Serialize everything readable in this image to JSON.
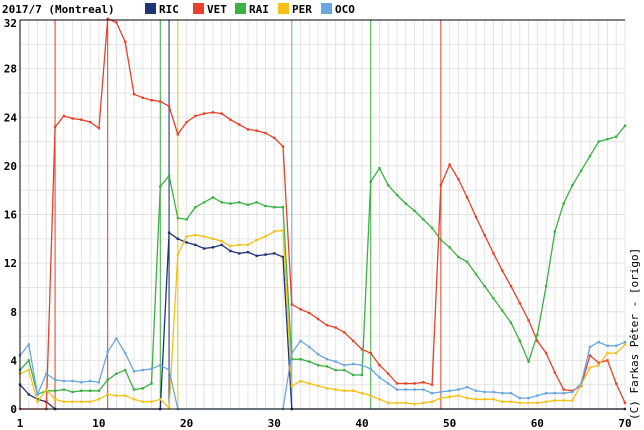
{
  "chart_data": {
    "type": "line",
    "title": "2017/7 (Montreal)",
    "credit": "(C) Farkas Péter - [origo]",
    "xlim": [
      1,
      70
    ],
    "ylim": [
      0,
      32
    ],
    "x_ticks": [
      1,
      10,
      20,
      30,
      40,
      50,
      60,
      70
    ],
    "y_ticks": [
      0,
      4,
      8,
      12,
      16,
      20,
      24,
      28,
      32
    ],
    "grid": true,
    "legend_position": "top",
    "series": [
      {
        "name": "RIC",
        "color": "#1f3477",
        "points": [
          [
            1,
            2.0
          ],
          [
            2,
            1.2
          ],
          [
            3,
            0.8
          ],
          [
            4,
            0.6
          ],
          [
            5,
            0
          ],
          [
            17,
            0
          ],
          [
            18,
            14.5
          ],
          [
            19,
            14.0
          ],
          [
            20,
            13.7
          ],
          [
            21,
            13.5
          ],
          [
            22,
            13.2
          ],
          [
            23,
            13.3
          ],
          [
            24,
            13.5
          ],
          [
            25,
            13.0
          ],
          [
            26,
            12.8
          ],
          [
            27,
            12.9
          ],
          [
            28,
            12.6
          ],
          [
            29,
            12.7
          ],
          [
            30,
            12.8
          ],
          [
            31,
            12.5
          ],
          [
            32,
            0
          ],
          [
            70,
            0
          ]
        ]
      },
      {
        "name": "VET",
        "color": "#e8402a",
        "points": [
          [
            1,
            0
          ],
          [
            4,
            0
          ],
          [
            5,
            23.2
          ],
          [
            6,
            24.1
          ],
          [
            7,
            23.9
          ],
          [
            8,
            23.8
          ],
          [
            9,
            23.6
          ],
          [
            10,
            23.1
          ],
          [
            11,
            32.1
          ],
          [
            12,
            31.8
          ],
          [
            13,
            30.2
          ],
          [
            14,
            25.9
          ],
          [
            15,
            25.6
          ],
          [
            16,
            25.4
          ],
          [
            17,
            25.3
          ],
          [
            18,
            24.9
          ],
          [
            19,
            22.6
          ],
          [
            20,
            23.6
          ],
          [
            21,
            24.1
          ],
          [
            22,
            24.3
          ],
          [
            23,
            24.4
          ],
          [
            24,
            24.3
          ],
          [
            25,
            23.8
          ],
          [
            26,
            23.4
          ],
          [
            27,
            23.0
          ],
          [
            28,
            22.9
          ],
          [
            29,
            22.7
          ],
          [
            30,
            22.3
          ],
          [
            31,
            21.6
          ],
          [
            32,
            8.6
          ],
          [
            33,
            8.2
          ],
          [
            34,
            7.9
          ],
          [
            35,
            7.4
          ],
          [
            36,
            6.9
          ],
          [
            37,
            6.7
          ],
          [
            38,
            6.3
          ],
          [
            39,
            5.6
          ],
          [
            40,
            4.9
          ],
          [
            41,
            4.6
          ],
          [
            42,
            3.6
          ],
          [
            43,
            2.9
          ],
          [
            44,
            2.1
          ],
          [
            45,
            2.1
          ],
          [
            46,
            2.1
          ],
          [
            47,
            2.2
          ],
          [
            48,
            2.0
          ],
          [
            49,
            18.4
          ],
          [
            50,
            20.1
          ],
          [
            51,
            18.9
          ],
          [
            52,
            17.4
          ],
          [
            53,
            15.8
          ],
          [
            54,
            14.3
          ],
          [
            55,
            12.8
          ],
          [
            56,
            11.4
          ],
          [
            57,
            10.1
          ],
          [
            58,
            8.7
          ],
          [
            59,
            7.3
          ],
          [
            60,
            5.6
          ],
          [
            61,
            4.6
          ],
          [
            62,
            3.0
          ],
          [
            63,
            1.6
          ],
          [
            64,
            1.5
          ],
          [
            65,
            1.9
          ],
          [
            66,
            4.4
          ],
          [
            67,
            3.8
          ],
          [
            68,
            4.0
          ],
          [
            69,
            2.1
          ],
          [
            70,
            0.5
          ]
        ]
      },
      {
        "name": "RAI",
        "color": "#3cb043",
        "points": [
          [
            1,
            3.2
          ],
          [
            2,
            4.0
          ],
          [
            3,
            1.2
          ],
          [
            4,
            1.5
          ],
          [
            5,
            1.5
          ],
          [
            6,
            1.6
          ],
          [
            7,
            1.4
          ],
          [
            8,
            1.5
          ],
          [
            9,
            1.5
          ],
          [
            10,
            1.5
          ],
          [
            11,
            2.4
          ],
          [
            12,
            2.9
          ],
          [
            13,
            3.2
          ],
          [
            14,
            1.6
          ],
          [
            15,
            1.7
          ],
          [
            16,
            2.1
          ],
          [
            17,
            18.3
          ],
          [
            18,
            19.2
          ],
          [
            19,
            15.7
          ],
          [
            20,
            15.6
          ],
          [
            21,
            16.6
          ],
          [
            22,
            17.0
          ],
          [
            23,
            17.4
          ],
          [
            24,
            17.0
          ],
          [
            25,
            16.9
          ],
          [
            26,
            17.0
          ],
          [
            27,
            16.8
          ],
          [
            28,
            17.0
          ],
          [
            29,
            16.7
          ],
          [
            30,
            16.6
          ],
          [
            31,
            16.6
          ],
          [
            32,
            4.1
          ],
          [
            33,
            4.1
          ],
          [
            34,
            3.9
          ],
          [
            35,
            3.6
          ],
          [
            36,
            3.5
          ],
          [
            37,
            3.2
          ],
          [
            38,
            3.2
          ],
          [
            39,
            2.8
          ],
          [
            40,
            2.8
          ],
          [
            41,
            18.7
          ],
          [
            42,
            19.8
          ],
          [
            43,
            18.4
          ],
          [
            44,
            17.6
          ],
          [
            45,
            16.9
          ],
          [
            46,
            16.3
          ],
          [
            47,
            15.6
          ],
          [
            48,
            14.9
          ],
          [
            49,
            13.9
          ],
          [
            50,
            13.3
          ],
          [
            51,
            12.5
          ],
          [
            52,
            12.1
          ],
          [
            53,
            11.1
          ],
          [
            54,
            10.1
          ],
          [
            55,
            9.1
          ],
          [
            56,
            8.1
          ],
          [
            57,
            7.1
          ],
          [
            58,
            5.6
          ],
          [
            59,
            3.9
          ],
          [
            60,
            6.1
          ],
          [
            61,
            10.1
          ],
          [
            62,
            14.6
          ],
          [
            63,
            16.9
          ],
          [
            64,
            18.4
          ],
          [
            65,
            19.6
          ],
          [
            66,
            20.8
          ],
          [
            67,
            22.0
          ],
          [
            68,
            22.2
          ],
          [
            69,
            22.4
          ],
          [
            70,
            23.3
          ]
        ]
      },
      {
        "name": "PER",
        "color": "#f5c018",
        "points": [
          [
            1,
            2.9
          ],
          [
            2,
            3.2
          ],
          [
            3,
            0.6
          ],
          [
            4,
            1.6
          ],
          [
            5,
            0.8
          ],
          [
            6,
            0.6
          ],
          [
            7,
            0.6
          ],
          [
            8,
            0.6
          ],
          [
            9,
            0.6
          ],
          [
            10,
            0.8
          ],
          [
            11,
            1.2
          ],
          [
            12,
            1.1
          ],
          [
            13,
            1.1
          ],
          [
            14,
            0.8
          ],
          [
            15,
            0.6
          ],
          [
            16,
            0.6
          ],
          [
            17,
            0.8
          ],
          [
            18,
            0.1
          ],
          [
            19,
            12.7
          ],
          [
            20,
            14.2
          ],
          [
            21,
            14.3
          ],
          [
            22,
            14.2
          ],
          [
            23,
            14.0
          ],
          [
            24,
            13.8
          ],
          [
            25,
            13.4
          ],
          [
            26,
            13.5
          ],
          [
            27,
            13.5
          ],
          [
            28,
            13.9
          ],
          [
            29,
            14.2
          ],
          [
            30,
            14.6
          ],
          [
            31,
            14.7
          ],
          [
            32,
            1.9
          ],
          [
            33,
            2.3
          ],
          [
            34,
            2.1
          ],
          [
            35,
            1.9
          ],
          [
            36,
            1.7
          ],
          [
            37,
            1.6
          ],
          [
            38,
            1.5
          ],
          [
            39,
            1.5
          ],
          [
            40,
            1.3
          ],
          [
            41,
            1.1
          ],
          [
            42,
            0.8
          ],
          [
            43,
            0.5
          ],
          [
            44,
            0.5
          ],
          [
            45,
            0.5
          ],
          [
            46,
            0.4
          ],
          [
            47,
            0.5
          ],
          [
            48,
            0.6
          ],
          [
            49,
            0.9
          ],
          [
            50,
            1.0
          ],
          [
            51,
            1.1
          ],
          [
            52,
            0.9
          ],
          [
            53,
            0.8
          ],
          [
            54,
            0.8
          ],
          [
            55,
            0.8
          ],
          [
            56,
            0.6
          ],
          [
            57,
            0.6
          ],
          [
            58,
            0.5
          ],
          [
            59,
            0.5
          ],
          [
            60,
            0.5
          ],
          [
            61,
            0.6
          ],
          [
            62,
            0.7
          ],
          [
            63,
            0.7
          ],
          [
            64,
            0.7
          ],
          [
            65,
            2.0
          ],
          [
            66,
            3.4
          ],
          [
            67,
            3.6
          ],
          [
            68,
            4.6
          ],
          [
            69,
            4.6
          ],
          [
            70,
            5.3
          ]
        ]
      },
      {
        "name": "OCO",
        "color": "#6aa6e0",
        "points": [
          [
            1,
            4.4
          ],
          [
            2,
            5.3
          ],
          [
            3,
            1.2
          ],
          [
            4,
            2.9
          ],
          [
            5,
            2.4
          ],
          [
            6,
            2.3
          ],
          [
            7,
            2.3
          ],
          [
            8,
            2.2
          ],
          [
            9,
            2.3
          ],
          [
            10,
            2.2
          ],
          [
            11,
            4.7
          ],
          [
            12,
            5.8
          ],
          [
            13,
            4.6
          ],
          [
            14,
            3.1
          ],
          [
            15,
            3.2
          ],
          [
            16,
            3.3
          ],
          [
            17,
            3.6
          ],
          [
            18,
            3.2
          ],
          [
            19,
            0
          ],
          [
            31,
            0
          ],
          [
            32,
            4.6
          ],
          [
            33,
            5.6
          ],
          [
            34,
            5.1
          ],
          [
            35,
            4.5
          ],
          [
            36,
            4.1
          ],
          [
            37,
            3.9
          ],
          [
            38,
            3.6
          ],
          [
            39,
            3.7
          ],
          [
            40,
            3.6
          ],
          [
            41,
            3.3
          ],
          [
            42,
            2.6
          ],
          [
            43,
            2.1
          ],
          [
            44,
            1.6
          ],
          [
            45,
            1.6
          ],
          [
            46,
            1.6
          ],
          [
            47,
            1.6
          ],
          [
            48,
            1.3
          ],
          [
            49,
            1.4
          ],
          [
            50,
            1.5
          ],
          [
            51,
            1.6
          ],
          [
            52,
            1.8
          ],
          [
            53,
            1.5
          ],
          [
            54,
            1.4
          ],
          [
            55,
            1.4
          ],
          [
            56,
            1.3
          ],
          [
            57,
            1.3
          ],
          [
            58,
            0.9
          ],
          [
            59,
            0.9
          ],
          [
            60,
            1.1
          ],
          [
            61,
            1.3
          ],
          [
            62,
            1.3
          ],
          [
            63,
            1.3
          ],
          [
            64,
            1.4
          ],
          [
            65,
            2.1
          ],
          [
            66,
            5.1
          ],
          [
            67,
            5.5
          ],
          [
            68,
            5.2
          ],
          [
            69,
            5.2
          ],
          [
            70,
            5.5
          ]
        ]
      }
    ],
    "vertical_markers": [
      {
        "x": 5,
        "color": "#e8402a"
      },
      {
        "x": 11,
        "color": "#e8402a"
      },
      {
        "x": 17,
        "color": "#3cb043"
      },
      {
        "x": 18,
        "color": "#3cb043"
      },
      {
        "x": 18,
        "color": "#1f3477"
      },
      {
        "x": 19,
        "color": "#f5c018"
      },
      {
        "x": 32,
        "color": "#6aa6e0"
      },
      {
        "x": 41,
        "color": "#3cb043"
      },
      {
        "x": 49,
        "color": "#e8402a"
      }
    ]
  }
}
